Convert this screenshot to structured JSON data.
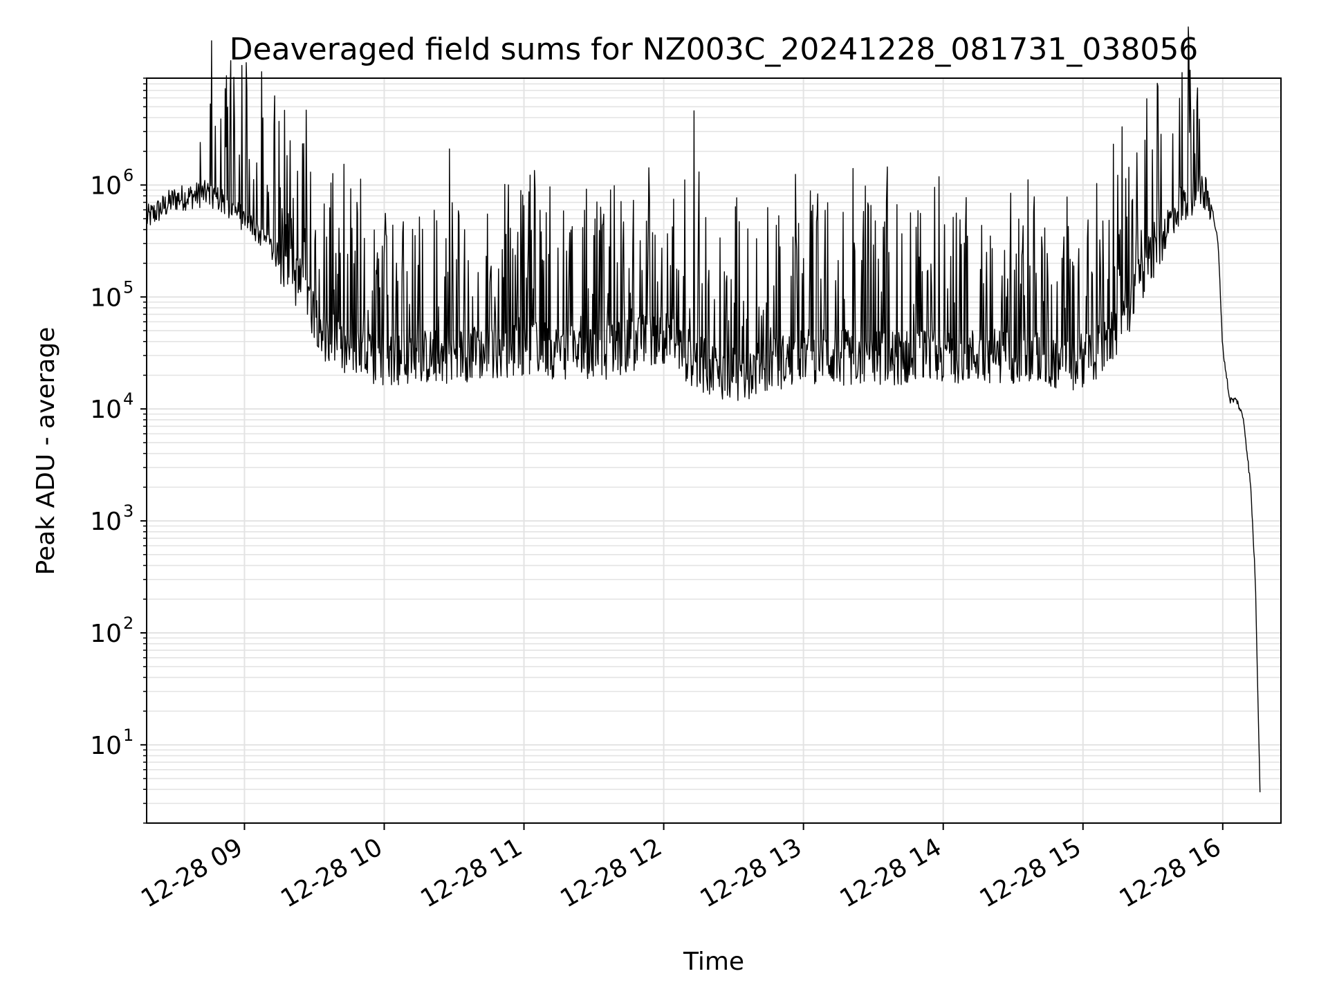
{
  "chart_data": {
    "type": "line",
    "title": "Deaveraged field sums for NZ003C_20241228_081731_038056",
    "xlabel": "Time",
    "ylabel": "Peak ADU - average",
    "yscale": "log",
    "grid": true,
    "line_color": "#000000",
    "grid_color": "#e3e3e3",
    "xlim": [
      "12-28 08:18",
      "12-28 16:25"
    ],
    "ylim": [
      2,
      9000000
    ],
    "x_ticks": [
      "12-28 09",
      "12-28 10",
      "12-28 11",
      "12-28 12",
      "12-28 13",
      "12-28 14",
      "12-28 15",
      "12-28 16"
    ],
    "y_ticks": [
      {
        "base": "10",
        "exp": "1",
        "value": 10
      },
      {
        "base": "10",
        "exp": "2",
        "value": 100
      },
      {
        "base": "10",
        "exp": "3",
        "value": 1000
      },
      {
        "base": "10",
        "exp": "4",
        "value": 10000
      },
      {
        "base": "10",
        "exp": "5",
        "value": 100000
      },
      {
        "base": "10",
        "exp": "6",
        "value": 1000000
      }
    ],
    "series": [
      {
        "x": [
          "12-28 08:18",
          "12-28 08:30",
          "12-28 08:45",
          "12-28 08:55",
          "12-28 09:05",
          "12-28 09:15",
          "12-28 09:25",
          "12-28 09:35",
          "12-28 09:45",
          "12-28 10:00",
          "12-28 10:30",
          "12-28 11:00",
          "12-28 11:30",
          "12-28 12:00",
          "12-28 12:15",
          "12-28 12:30",
          "12-28 13:00",
          "12-28 13:30",
          "12-28 14:00",
          "12-28 14:30",
          "12-28 14:55",
          "12-28 15:10",
          "12-28 15:20",
          "12-28 15:30",
          "12-28 15:40",
          "12-28 15:50",
          "12-28 15:55",
          "12-28 15:58",
          "12-28 16:00",
          "12-28 16:03",
          "12-28 16:06",
          "12-28 16:09",
          "12-28 16:12",
          "12-28 16:14",
          "12-28 16:16"
        ],
        "y": [
          500000,
          750000,
          850000,
          600000,
          400000,
          220000,
          120000,
          45000,
          30000,
          28000,
          30000,
          35000,
          30000,
          45000,
          25000,
          20000,
          30000,
          28000,
          30000,
          30000,
          25000,
          35000,
          80000,
          250000,
          600000,
          900000,
          700000,
          300000,
          35000,
          12000,
          12000,
          8000,
          2000,
          300,
          4
        ],
        "spikes": [
          {
            "x": "12-28 08:41",
            "y": 2400000
          },
          {
            "x": "12-28 10:28",
            "y": 2100000
          },
          {
            "x": "12-28 12:13",
            "y": 4600000
          },
          {
            "x": "12-28 13:36",
            "y": 1450000
          },
          {
            "x": "12-28 15:48",
            "y": 1900000
          }
        ]
      }
    ]
  }
}
